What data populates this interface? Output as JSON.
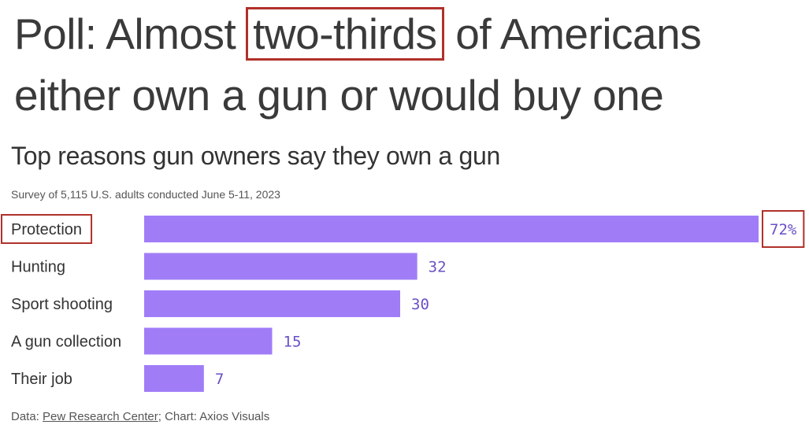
{
  "headline": {
    "before": "Poll: Almost ",
    "highlight": "two-thirds",
    "after": " of Americans either own a gun or would buy one"
  },
  "chart_data": {
    "type": "bar",
    "orientation": "horizontal",
    "title": "Top reasons gun owners say they own a gun",
    "subtitle": "Survey of 5,115 U.S. adults conducted June 5-11, 2023",
    "categories": [
      "Protection",
      "Hunting",
      "Sport shooting",
      "A gun collection",
      "Their job"
    ],
    "values": [
      72,
      32,
      30,
      15,
      7
    ],
    "value_labels": [
      "72%",
      "32",
      "30",
      "15",
      "7"
    ],
    "xlim": [
      0,
      72
    ],
    "grid": false,
    "bar_color": "#a07df7",
    "label_color": "#6a4fc7",
    "highlight_color": "#b0312a",
    "highlighted_index": 0
  },
  "credits": {
    "prefix": "Data: ",
    "source": "Pew Research Center",
    "suffix": "; Chart: Axios Visuals"
  }
}
